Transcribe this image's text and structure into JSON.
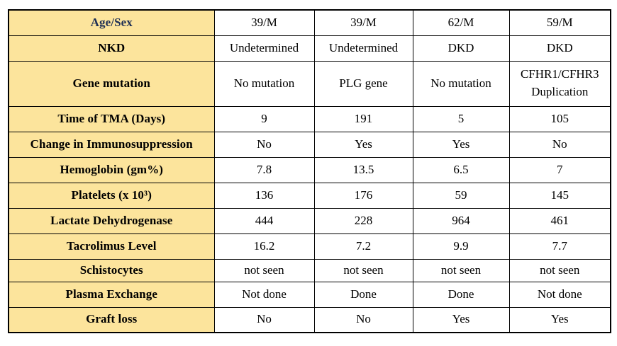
{
  "colors": {
    "page_bg": "#FFFFFF",
    "header_bg": "#FCE49C",
    "border": "#000000",
    "label_text": "#000000",
    "age_sex_label": "#1E2F55",
    "value_text": "#000000"
  },
  "table": {
    "description": "Clinical case comparison table of four kidney transplant patients with TMA",
    "rows": [
      {
        "label": "Age/Sex",
        "values": [
          "39/M",
          "39/M",
          "62/M",
          "59/M"
        ]
      },
      {
        "label": "NKD",
        "values": [
          "Undetermined",
          "Undetermined",
          "DKD",
          "DKD"
        ]
      },
      {
        "label": "Gene mutation",
        "values": [
          "No mutation",
          "PLG gene",
          "No mutation",
          "CFHR1/CFHR3\nDuplication"
        ]
      },
      {
        "label": "Time of TMA (Days)",
        "values": [
          "9",
          "191",
          "5",
          "105"
        ]
      },
      {
        "label": "Change in Immunosuppression",
        "values": [
          "No",
          "Yes",
          "Yes",
          "No"
        ]
      },
      {
        "label": "Hemoglobin (gm%)",
        "values": [
          "7.8",
          "13.5",
          "6.5",
          "7"
        ]
      },
      {
        "label": "Platelets (x 10³)",
        "values": [
          "136",
          "176",
          "59",
          "145"
        ]
      },
      {
        "label": "Lactate Dehydrogenase",
        "values": [
          "444",
          "228",
          "964",
          "461"
        ]
      },
      {
        "label": "Tacrolimus Level",
        "values": [
          "16.2",
          "7.2",
          "9.9",
          "7.7"
        ]
      },
      {
        "label": "Schistocytes",
        "values": [
          "not seen",
          "not seen",
          "not seen",
          "not seen"
        ]
      },
      {
        "label": "Plasma Exchange",
        "values": [
          "Not done",
          "Done",
          "Done",
          "Not done"
        ]
      },
      {
        "label": "Graft loss",
        "values": [
          "No",
          "No",
          "Yes",
          "Yes"
        ]
      }
    ]
  }
}
